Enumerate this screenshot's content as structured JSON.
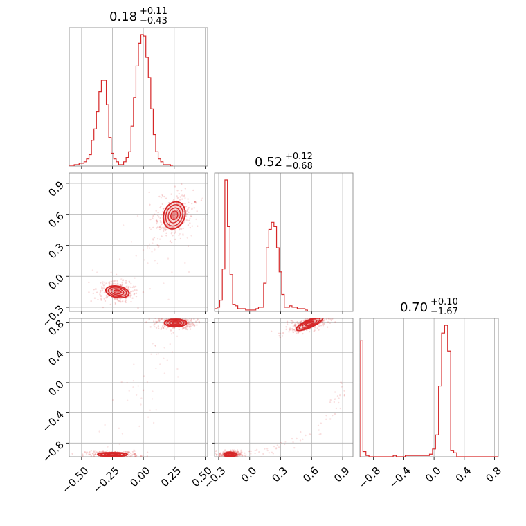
{
  "chart_data": {
    "type": "corner",
    "grid": true,
    "colors": {
      "accent": "#d62728",
      "grid": "#b0b0b0",
      "frame": "#808080"
    },
    "titles": [
      {
        "value": "0.18",
        "plus": "+0.11",
        "minus": "−0.43"
      },
      {
        "value": "0.52",
        "plus": "+0.12",
        "minus": "−0.68"
      },
      {
        "value": "0.70",
        "plus": "+0.10",
        "minus": "−1.67"
      }
    ],
    "axes": [
      {
        "range": [
          -0.6,
          0.52
        ],
        "ticks": [
          -0.5,
          -0.25,
          0.0,
          0.25,
          0.5
        ],
        "tick_labels": [
          "−0.50",
          "−0.25",
          "0.00",
          "0.25",
          "0.50"
        ]
      },
      {
        "range": [
          -0.34,
          1.0
        ],
        "ticks": [
          -0.3,
          0.0,
          0.3,
          0.6,
          0.9
        ],
        "tick_labels": [
          "−0.3",
          "0.0",
          "0.3",
          "0.6",
          "0.9"
        ]
      },
      {
        "range": [
          -0.98,
          0.85
        ],
        "ticks": [
          -0.8,
          -0.4,
          0.0,
          0.4,
          0.8
        ],
        "tick_labels": [
          "−0.8",
          "−0.4",
          "0.0",
          "0.4",
          "0.8"
        ]
      }
    ],
    "histograms": [
      {
        "param": 0,
        "bin_start": -0.6,
        "bin_width": 0.02,
        "counts": [
          0,
          0,
          1,
          1,
          2,
          2,
          3,
          5,
          8,
          18,
          26,
          38,
          52,
          60,
          60,
          43,
          20,
          9,
          5,
          3,
          1,
          1,
          3,
          6,
          10,
          28,
          48,
          70,
          86,
          92,
          91,
          76,
          62,
          40,
          22,
          10,
          5,
          3,
          1,
          1,
          1,
          0
        ]
      },
      {
        "param": 1,
        "bin_start": -0.34,
        "bin_width": 0.025,
        "counts": [
          2,
          3,
          8,
          30,
          93,
          60,
          26,
          5,
          4,
          2,
          2,
          2,
          1,
          1,
          1,
          1,
          2,
          3,
          3,
          20,
          45,
          58,
          63,
          60,
          45,
          28,
          12,
          3,
          3,
          4,
          3,
          3,
          2,
          2,
          2,
          1
        ]
      },
      {
        "param": 2,
        "bin_start": -0.98,
        "bin_width": 0.04,
        "counts": [
          90,
          4,
          1,
          0,
          0,
          0,
          0,
          0,
          0,
          0,
          0,
          1,
          0,
          0,
          0,
          1,
          1,
          1,
          1,
          1,
          1,
          1,
          1,
          2,
          6,
          17,
          55,
          96,
          102,
          82,
          5,
          3,
          0,
          0,
          0,
          0,
          0,
          0,
          0,
          0,
          0,
          0,
          0,
          0,
          0,
          0
        ]
      }
    ],
    "pairs": [
      {
        "x_param": 0,
        "y_param": 1,
        "modes": [
          {
            "cx": 0.25,
            "cy": 0.59,
            "rx": 0.085,
            "ry": 0.135,
            "rot": -20
          },
          {
            "cx": -0.21,
            "cy": -0.15,
            "rx": 0.095,
            "ry": 0.055,
            "rot": -10
          }
        ],
        "bridge_from": [
          -0.21,
          -0.15
        ],
        "bridge_to": [
          0.25,
          0.59
        ]
      },
      {
        "x_param": 0,
        "y_param": 2,
        "modes": [
          {
            "cx": 0.26,
            "cy": 0.79,
            "rx": 0.09,
            "ry": 0.05,
            "rot": 0
          },
          {
            "cx": -0.25,
            "cy": -0.95,
            "rx": 0.12,
            "ry": 0.025,
            "rot": 0
          }
        ],
        "bridge_from": [
          -0.25,
          -0.95
        ],
        "bridge_to": [
          0.26,
          0.79
        ]
      },
      {
        "x_param": 1,
        "y_param": 2,
        "modes": [
          {
            "cx": 0.58,
            "cy": 0.78,
            "rx": 0.14,
            "ry": 0.05,
            "rot": 24
          },
          {
            "cx": -0.19,
            "cy": -0.95,
            "rx": 0.06,
            "ry": 0.03,
            "rot": 0
          }
        ],
        "arc": true
      }
    ]
  }
}
